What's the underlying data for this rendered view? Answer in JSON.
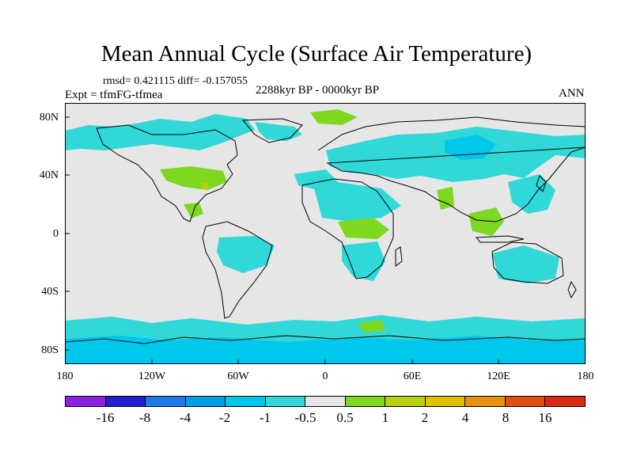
{
  "header": {
    "title": "Mean Annual Cycle (Surface Air Temperature)",
    "stats": "rmsd= 0.421115 diff= -0.157055",
    "experiment": "Expt = tfmFG-tfmea",
    "period": "2288kyr BP - 0000kyr BP",
    "season": "ANN"
  },
  "map": {
    "lat_labels": [
      "80N",
      "40N",
      "0",
      "40S",
      "80S"
    ],
    "lon_labels": [
      "180",
      "120W",
      "60W",
      "0",
      "60E",
      "120E",
      "180"
    ],
    "neutral_color": "#e6e6e6",
    "colors": {
      "cyan": "#30d8d8",
      "lightblue": "#00c8ec",
      "green": "#7ed820",
      "yellow": "#b8d010"
    }
  },
  "colorbar": {
    "labels": [
      "-16",
      "-8",
      "-4",
      "-2",
      "-1",
      "-0.5",
      "0.5",
      "1",
      "2",
      "4",
      "8",
      "16"
    ],
    "colors": [
      "#9020e0",
      "#2020d0",
      "#1e78ea",
      "#00a0e6",
      "#00c8ec",
      "#30d8d8",
      "#e6e6e6",
      "#7ed820",
      "#b8d010",
      "#e0c000",
      "#e89010",
      "#e05010",
      "#d82a10"
    ]
  }
}
